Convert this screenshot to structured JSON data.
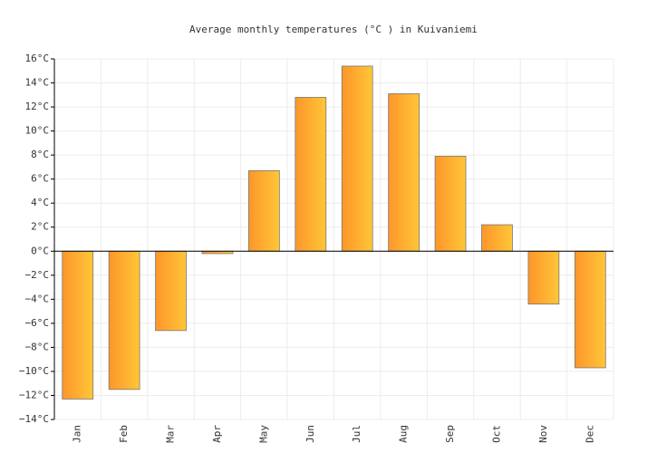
{
  "chart_data": {
    "type": "bar",
    "title": "Average monthly temperatures (°C ) in Kuivaniemi",
    "categories": [
      "Jan",
      "Feb",
      "Mar",
      "Apr",
      "May",
      "Jun",
      "Jul",
      "Aug",
      "Sep",
      "Oct",
      "Nov",
      "Dec"
    ],
    "values": [
      -12.3,
      -11.5,
      -6.6,
      -0.2,
      6.7,
      12.8,
      15.4,
      13.1,
      7.9,
      2.2,
      -4.4,
      -9.7
    ],
    "colors": [
      "#fd962b",
      "#ffc637"
    ],
    "ylim": [
      -14,
      16
    ],
    "yticks": [
      {
        "value": -14,
        "label": "−14°C"
      },
      {
        "value": -12,
        "label": "−12°C"
      },
      {
        "value": -10,
        "label": "−10°C"
      },
      {
        "value": -8,
        "label": "−8°C"
      },
      {
        "value": -6,
        "label": "−6°C"
      },
      {
        "value": -4,
        "label": "−4°C"
      },
      {
        "value": -2,
        "label": "−2°C"
      },
      {
        "value": 0,
        "label": "0°C"
      },
      {
        "value": 2,
        "label": "2°C"
      },
      {
        "value": 4,
        "label": "4°C"
      },
      {
        "value": 6,
        "label": "6°C"
      },
      {
        "value": 8,
        "label": "8°C"
      },
      {
        "value": 10,
        "label": "10°C"
      },
      {
        "value": 12,
        "label": "12°C"
      },
      {
        "value": 14,
        "label": "14°C"
      },
      {
        "value": 16,
        "label": "16°C"
      }
    ],
    "grid": true
  }
}
